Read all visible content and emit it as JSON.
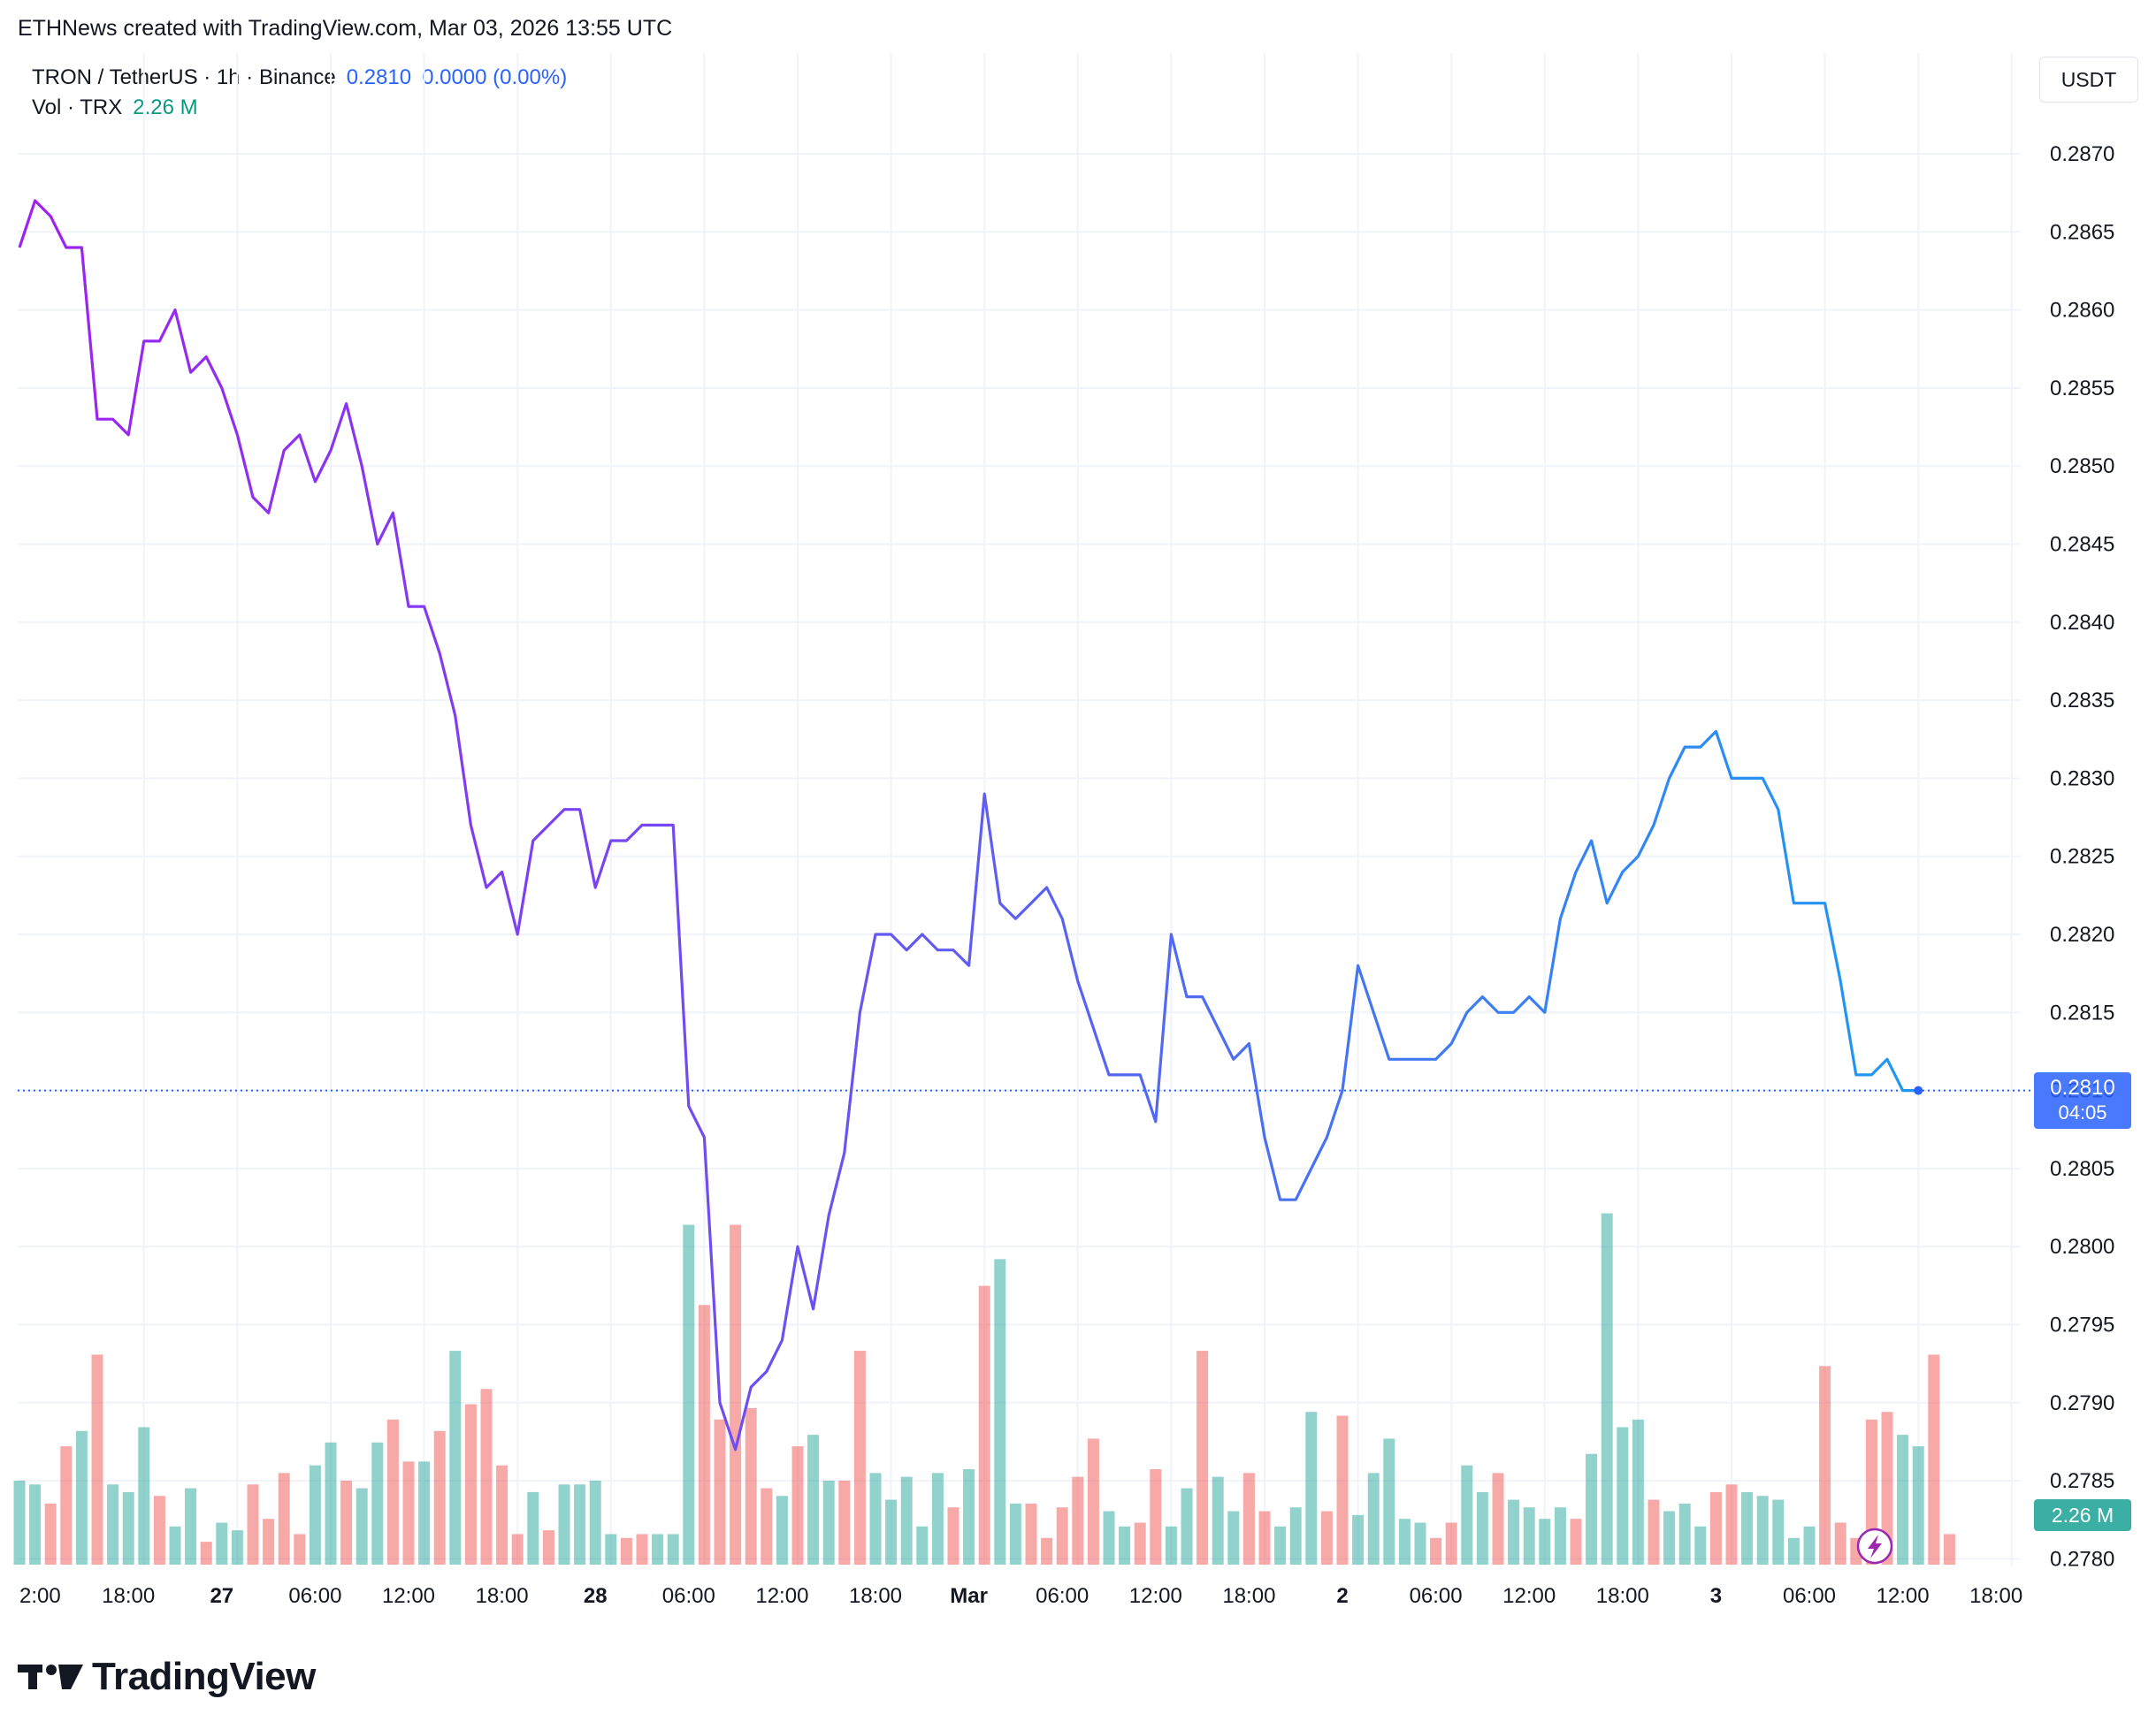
{
  "header": {
    "attribution": "ETHNews created with TradingView.com, Mar 03, 2026 13:55 UTC"
  },
  "legend": {
    "symbol": "TRON / TetherUS · 1h · Binance",
    "price": "0.2810",
    "change": "0.0000 (0.00%)",
    "vol_label": "Vol · TRX",
    "vol_value": "2.26 M"
  },
  "currency_button": "USDT",
  "last_price_tag": {
    "price": "0.2810",
    "countdown": "04:05"
  },
  "volume_tag": "2.26 M",
  "brand": "TradingView",
  "colors": {
    "up": "#26a69a",
    "down": "#ef5350",
    "line_start": "#a020f0",
    "line_end": "#2196f3",
    "price_tag": "#2962ff"
  },
  "chart_data": {
    "type": "line",
    "title": "",
    "xlabel": "",
    "ylabel": "",
    "ylim": [
      0.2779,
      0.2874
    ],
    "y_ticks": [
      "0.2870",
      "0.2865",
      "0.2860",
      "0.2855",
      "0.2850",
      "0.2845",
      "0.2840",
      "0.2835",
      "0.2830",
      "0.2825",
      "0.2820",
      "0.2815",
      "0.2810",
      "0.2805",
      "0.2800",
      "0.2795",
      "0.2790",
      "0.2785",
      "0.2780"
    ],
    "x_ticks": [
      {
        "label": "2:00",
        "index": 1
      },
      {
        "label": "18:00",
        "index": 7
      },
      {
        "label": "27",
        "index": 13
      },
      {
        "label": "06:00",
        "index": 19
      },
      {
        "label": "12:00",
        "index": 25
      },
      {
        "label": "18:00",
        "index": 31
      },
      {
        "label": "28",
        "index": 37
      },
      {
        "label": "06:00",
        "index": 43
      },
      {
        "label": "12:00",
        "index": 49
      },
      {
        "label": "18:00",
        "index": 55
      },
      {
        "label": "Mar",
        "index": 61
      },
      {
        "label": "06:00",
        "index": 67
      },
      {
        "label": "12:00",
        "index": 73
      },
      {
        "label": "18:00",
        "index": 79
      },
      {
        "label": "2",
        "index": 85
      },
      {
        "label": "06:00",
        "index": 91
      },
      {
        "label": "12:00",
        "index": 97
      },
      {
        "label": "18:00",
        "index": 103
      },
      {
        "label": "3",
        "index": 109
      },
      {
        "label": "06:00",
        "index": 115
      },
      {
        "label": "12:00",
        "index": 121
      },
      {
        "label": "18:00",
        "index": 127
      }
    ],
    "grid": true,
    "grid_verticals": [
      8,
      14,
      20,
      26,
      32,
      38,
      44,
      50,
      56,
      62,
      68,
      74,
      80,
      86,
      92,
      98,
      104,
      110,
      116,
      122,
      128
    ],
    "price": [
      0.2864,
      0.2867,
      0.2866,
      0.2864,
      0.2864,
      0.2853,
      0.2853,
      0.2852,
      0.2858,
      0.2858,
      0.286,
      0.2856,
      0.2857,
      0.2855,
      0.2852,
      0.2848,
      0.2847,
      0.2851,
      0.2852,
      0.2849,
      0.2851,
      0.2854,
      0.285,
      0.2845,
      0.2847,
      0.2841,
      0.2841,
      0.2838,
      0.2834,
      0.2827,
      0.2823,
      0.2824,
      0.282,
      0.2826,
      0.2827,
      0.2828,
      0.2828,
      0.2823,
      0.2826,
      0.2826,
      0.2827,
      0.2827,
      0.2827,
      0.2809,
      0.2807,
      0.279,
      0.2787,
      0.2791,
      0.2792,
      0.2794,
      0.28,
      0.2796,
      0.2802,
      0.2806,
      0.2815,
      0.282,
      0.282,
      0.2819,
      0.282,
      0.2819,
      0.2819,
      0.2818,
      0.2829,
      0.2822,
      0.2821,
      0.2822,
      0.2823,
      0.2821,
      0.2817,
      0.2814,
      0.2811,
      0.2811,
      0.2811,
      0.2808,
      0.282,
      0.2816,
      0.2816,
      0.2814,
      0.2812,
      0.2813,
      0.2807,
      0.2803,
      0.2803,
      0.2805,
      0.2807,
      0.281,
      0.2818,
      0.2815,
      0.2812,
      0.2812,
      0.2812,
      0.2812,
      0.2813,
      0.2815,
      0.2816,
      0.2815,
      0.2815,
      0.2816,
      0.2815,
      0.2821,
      0.2824,
      0.2826,
      0.2822,
      0.2824,
      0.2825,
      0.2827,
      0.283,
      0.2832,
      0.2832,
      0.2833,
      0.283,
      0.283,
      0.283,
      0.2828,
      0.2822,
      0.2822,
      0.2822,
      0.2817,
      0.2811,
      0.2811,
      0.2812,
      0.281,
      0.281
    ],
    "volume_direction": [
      "up",
      "up",
      "down",
      "down",
      "up",
      "down",
      "up",
      "up",
      "up",
      "down",
      "up",
      "up",
      "down",
      "up",
      "up",
      "down",
      "down",
      "down",
      "down",
      "up",
      "up",
      "down",
      "up",
      "up",
      "down",
      "down",
      "up",
      "down",
      "up",
      "down",
      "down",
      "down",
      "down",
      "up",
      "down",
      "up",
      "up",
      "up",
      "up",
      "down",
      "down",
      "up",
      "up",
      "up",
      "down",
      "down",
      "down",
      "down",
      "down",
      "up",
      "down",
      "up",
      "up",
      "down",
      "down",
      "up",
      "up",
      "up",
      "up",
      "up",
      "down",
      "up",
      "down",
      "up",
      "up",
      "down",
      "down",
      "down",
      "down",
      "down",
      "up",
      "up",
      "down",
      "down",
      "up",
      "up",
      "down",
      "up",
      "up",
      "down",
      "down",
      "up",
      "up",
      "up",
      "down",
      "down",
      "up",
      "up",
      "up",
      "up",
      "up",
      "down",
      "down",
      "up",
      "up",
      "down",
      "up",
      "up",
      "up",
      "up",
      "down",
      "up",
      "up",
      "up",
      "up",
      "down",
      "up",
      "up",
      "up",
      "down",
      "down",
      "up",
      "up",
      "up",
      "up",
      "up",
      "down",
      "down",
      "down",
      "down",
      "down",
      "up",
      "up",
      "down",
      "down",
      "up"
    ],
    "volume_rel": [
      0.22,
      0.21,
      0.16,
      0.31,
      0.35,
      0.55,
      0.21,
      0.19,
      0.36,
      0.18,
      0.1,
      0.2,
      0.06,
      0.11,
      0.09,
      0.21,
      0.12,
      0.24,
      0.08,
      0.26,
      0.32,
      0.22,
      0.2,
      0.32,
      0.38,
      0.27,
      0.27,
      0.35,
      0.56,
      0.42,
      0.46,
      0.26,
      0.08,
      0.19,
      0.09,
      0.21,
      0.21,
      0.22,
      0.08,
      0.07,
      0.08,
      0.08,
      0.08,
      0.89,
      0.68,
      0.38,
      0.89,
      0.41,
      0.2,
      0.18,
      0.31,
      0.34,
      0.22,
      0.22,
      0.56,
      0.24,
      0.17,
      0.23,
      0.1,
      0.24,
      0.15,
      0.25,
      0.73,
      0.8,
      0.16,
      0.16,
      0.07,
      0.15,
      0.23,
      0.33,
      0.14,
      0.1,
      0.11,
      0.25,
      0.1,
      0.2,
      0.56,
      0.23,
      0.14,
      0.24,
      0.14,
      0.1,
      0.15,
      0.4,
      0.14,
      0.39,
      0.13,
      0.24,
      0.33,
      0.12,
      0.11,
      0.07,
      0.11,
      0.26,
      0.19,
      0.24,
      0.17,
      0.15,
      0.12,
      0.15,
      0.12,
      0.29,
      0.92,
      0.36,
      0.38,
      0.17,
      0.14,
      0.16,
      0.1,
      0.19,
      0.21,
      0.19,
      0.18,
      0.17,
      0.07,
      0.1,
      0.52,
      0.11,
      0.07,
      0.38,
      0.4,
      0.34,
      0.31,
      0.55,
      0.08
    ]
  }
}
